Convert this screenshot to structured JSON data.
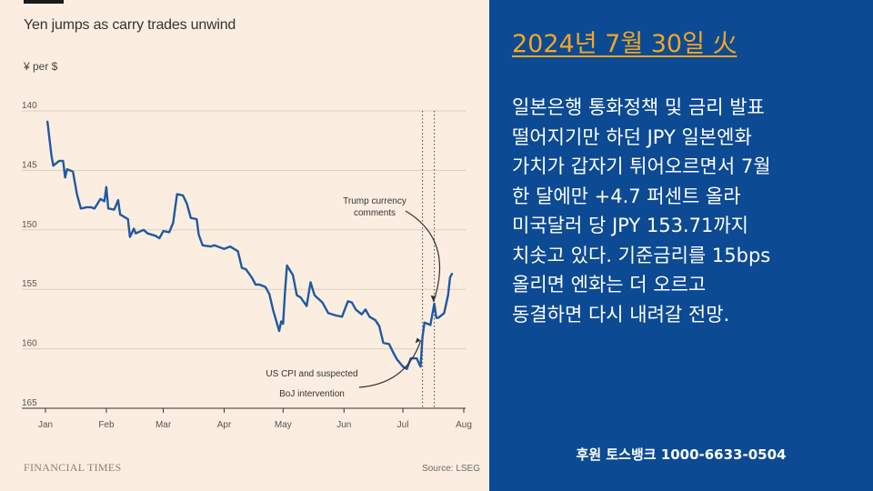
{
  "chart_panel": {
    "title": "Yen jumps as carry trades unwind",
    "unit": "¥ per $",
    "publisher": "FINANCIAL TIMES",
    "source": "Source: LSEG"
  },
  "chart_data": {
    "type": "line",
    "title": "Yen jumps as carry trades unwind",
    "ylabel": "¥ per $",
    "y_inverted": true,
    "ylim": [
      140,
      165
    ],
    "yticks": [
      "140",
      "145",
      "150",
      "155",
      "160",
      "165"
    ],
    "xticks": [
      "Jan",
      "Feb",
      "Mar",
      "Apr",
      "May",
      "Jun",
      "Jul",
      "Aug"
    ],
    "grid": true,
    "series": [
      {
        "color": "#1f5aa0",
        "points": [
          [
            "2024-01-02",
            140.9
          ],
          [
            "2024-01-04",
            143.7
          ],
          [
            "2024-01-05",
            144.6
          ],
          [
            "2024-01-08",
            144.2
          ],
          [
            "2024-01-10",
            144.2
          ],
          [
            "2024-01-11",
            145.6
          ],
          [
            "2024-01-12",
            144.9
          ],
          [
            "2024-01-15",
            145.1
          ],
          [
            "2024-01-17",
            147.0
          ],
          [
            "2024-01-19",
            148.2
          ],
          [
            "2024-01-22",
            148.1
          ],
          [
            "2024-01-24",
            148.1
          ],
          [
            "2024-01-26",
            148.2
          ],
          [
            "2024-01-29",
            147.4
          ],
          [
            "2024-01-31",
            147.6
          ],
          [
            "2024-02-01",
            146.4
          ],
          [
            "2024-02-02",
            148.2
          ],
          [
            "2024-02-05",
            148.3
          ],
          [
            "2024-02-07",
            147.5
          ],
          [
            "2024-02-08",
            148.7
          ],
          [
            "2024-02-12",
            149.1
          ],
          [
            "2024-02-13",
            150.6
          ],
          [
            "2024-02-15",
            149.9
          ],
          [
            "2024-02-16",
            150.3
          ],
          [
            "2024-02-20",
            150.0
          ],
          [
            "2024-02-22",
            150.3
          ],
          [
            "2024-02-26",
            150.5
          ],
          [
            "2024-02-28",
            150.7
          ],
          [
            "2024-03-01",
            150.1
          ],
          [
            "2024-03-04",
            150.2
          ],
          [
            "2024-03-06",
            149.4
          ],
          [
            "2024-03-08",
            147.0
          ],
          [
            "2024-03-11",
            147.1
          ],
          [
            "2024-03-13",
            147.8
          ],
          [
            "2024-03-15",
            149.0
          ],
          [
            "2024-03-18",
            149.1
          ],
          [
            "2024-03-19",
            150.4
          ],
          [
            "2024-03-21",
            151.3
          ],
          [
            "2024-03-25",
            151.4
          ],
          [
            "2024-03-27",
            151.3
          ],
          [
            "2024-04-01",
            151.6
          ],
          [
            "2024-04-04",
            151.4
          ],
          [
            "2024-04-08",
            151.8
          ],
          [
            "2024-04-10",
            153.2
          ],
          [
            "2024-04-12",
            153.3
          ],
          [
            "2024-04-15",
            154.0
          ],
          [
            "2024-04-17",
            154.6
          ],
          [
            "2024-04-19",
            154.6
          ],
          [
            "2024-04-22",
            154.8
          ],
          [
            "2024-04-24",
            155.4
          ],
          [
            "2024-04-26",
            156.8
          ],
          [
            "2024-04-29",
            158.5
          ],
          [
            "2024-04-30",
            157.7
          ],
          [
            "2024-05-01",
            157.9
          ],
          [
            "2024-05-02",
            155.1
          ],
          [
            "2024-05-03",
            153.0
          ],
          [
            "2024-05-06",
            153.8
          ],
          [
            "2024-05-08",
            155.5
          ],
          [
            "2024-05-10",
            155.7
          ],
          [
            "2024-05-13",
            156.4
          ],
          [
            "2024-05-15",
            154.4
          ],
          [
            "2024-05-17",
            155.5
          ],
          [
            "2024-05-21",
            156.1
          ],
          [
            "2024-05-24",
            157.0
          ],
          [
            "2024-05-28",
            157.2
          ],
          [
            "2024-05-31",
            157.3
          ],
          [
            "2024-06-03",
            156.0
          ],
          [
            "2024-06-05",
            156.1
          ],
          [
            "2024-06-07",
            156.7
          ],
          [
            "2024-06-10",
            157.1
          ],
          [
            "2024-06-12",
            156.7
          ],
          [
            "2024-06-14",
            157.3
          ],
          [
            "2024-06-17",
            157.6
          ],
          [
            "2024-06-19",
            158.1
          ],
          [
            "2024-06-21",
            159.5
          ],
          [
            "2024-06-24",
            159.6
          ],
          [
            "2024-06-26",
            160.3
          ],
          [
            "2024-06-28",
            160.9
          ],
          [
            "2024-07-01",
            161.5
          ],
          [
            "2024-07-03",
            161.7
          ],
          [
            "2024-07-05",
            160.8
          ],
          [
            "2024-07-08",
            160.8
          ],
          [
            "2024-07-10",
            161.5
          ],
          [
            "2024-07-11",
            159.0
          ],
          [
            "2024-07-12",
            157.8
          ],
          [
            "2024-07-15",
            158.0
          ],
          [
            "2024-07-17",
            156.2
          ],
          [
            "2024-07-18",
            157.4
          ],
          [
            "2024-07-19",
            157.4
          ],
          [
            "2024-07-22",
            157.0
          ],
          [
            "2024-07-24",
            155.5
          ],
          [
            "2024-07-25",
            154.0
          ],
          [
            "2024-07-26",
            153.7
          ]
        ]
      }
    ],
    "reference_lines": [
      {
        "x": "2024-07-11",
        "style": "dotted"
      },
      {
        "x": "2024-07-17",
        "style": "dotted"
      }
    ],
    "annotations": [
      {
        "lines": [
          "Trump currency",
          "comments"
        ],
        "target": [
          "2024-07-17",
          156.2
        ]
      },
      {
        "lines": [
          "US CPI and suspected",
          "BoJ intervention"
        ],
        "target": [
          "2024-07-11",
          159.0
        ]
      }
    ]
  },
  "commentary": {
    "date": "2024년 7월 30일 火",
    "lines": [
      "일본은행 통화정책 및 금리 발표",
      "떨어지기만 하던 JPY 일본엔화",
      "가치가 갑자기 튀어오르면서 7월",
      "한 달에만 +4.7 퍼센트 올라",
      "미국달러 당 JPY 153.71까지",
      "치솟고 있다. 기준금리를 15bps",
      "올리면 엔화는 더 오르고",
      "동결하면 다시 내려갈 전망."
    ],
    "sponsor": "후원 토스뱅크 1000-6633-0504"
  },
  "colors": {
    "chart_background": "#fbeee1",
    "line": "#1f5aa0",
    "panel_background": "#0c4a94",
    "date_heading": "#f5a623",
    "text": "#ffffff"
  }
}
